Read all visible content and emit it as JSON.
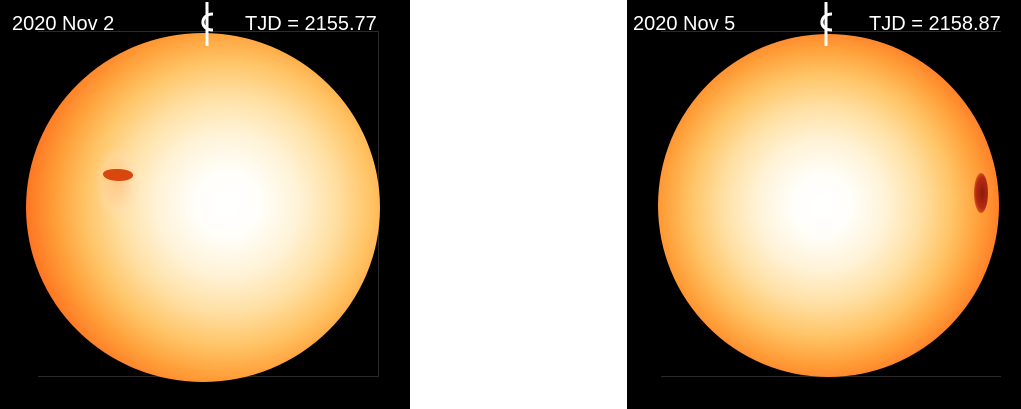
{
  "panels": [
    {
      "date": "2020 Nov 2",
      "tjd": "TJD = 2155.77",
      "icon": "rotation-axis-icon"
    },
    {
      "date": "2020 Nov 5",
      "tjd": "TJD = 2158.87",
      "icon": "rotation-axis-icon"
    }
  ],
  "colors": {
    "background": "#000000",
    "disk_center": "#ffffff",
    "disk_limb": "#d62a14",
    "spot": "#d9470f"
  }
}
